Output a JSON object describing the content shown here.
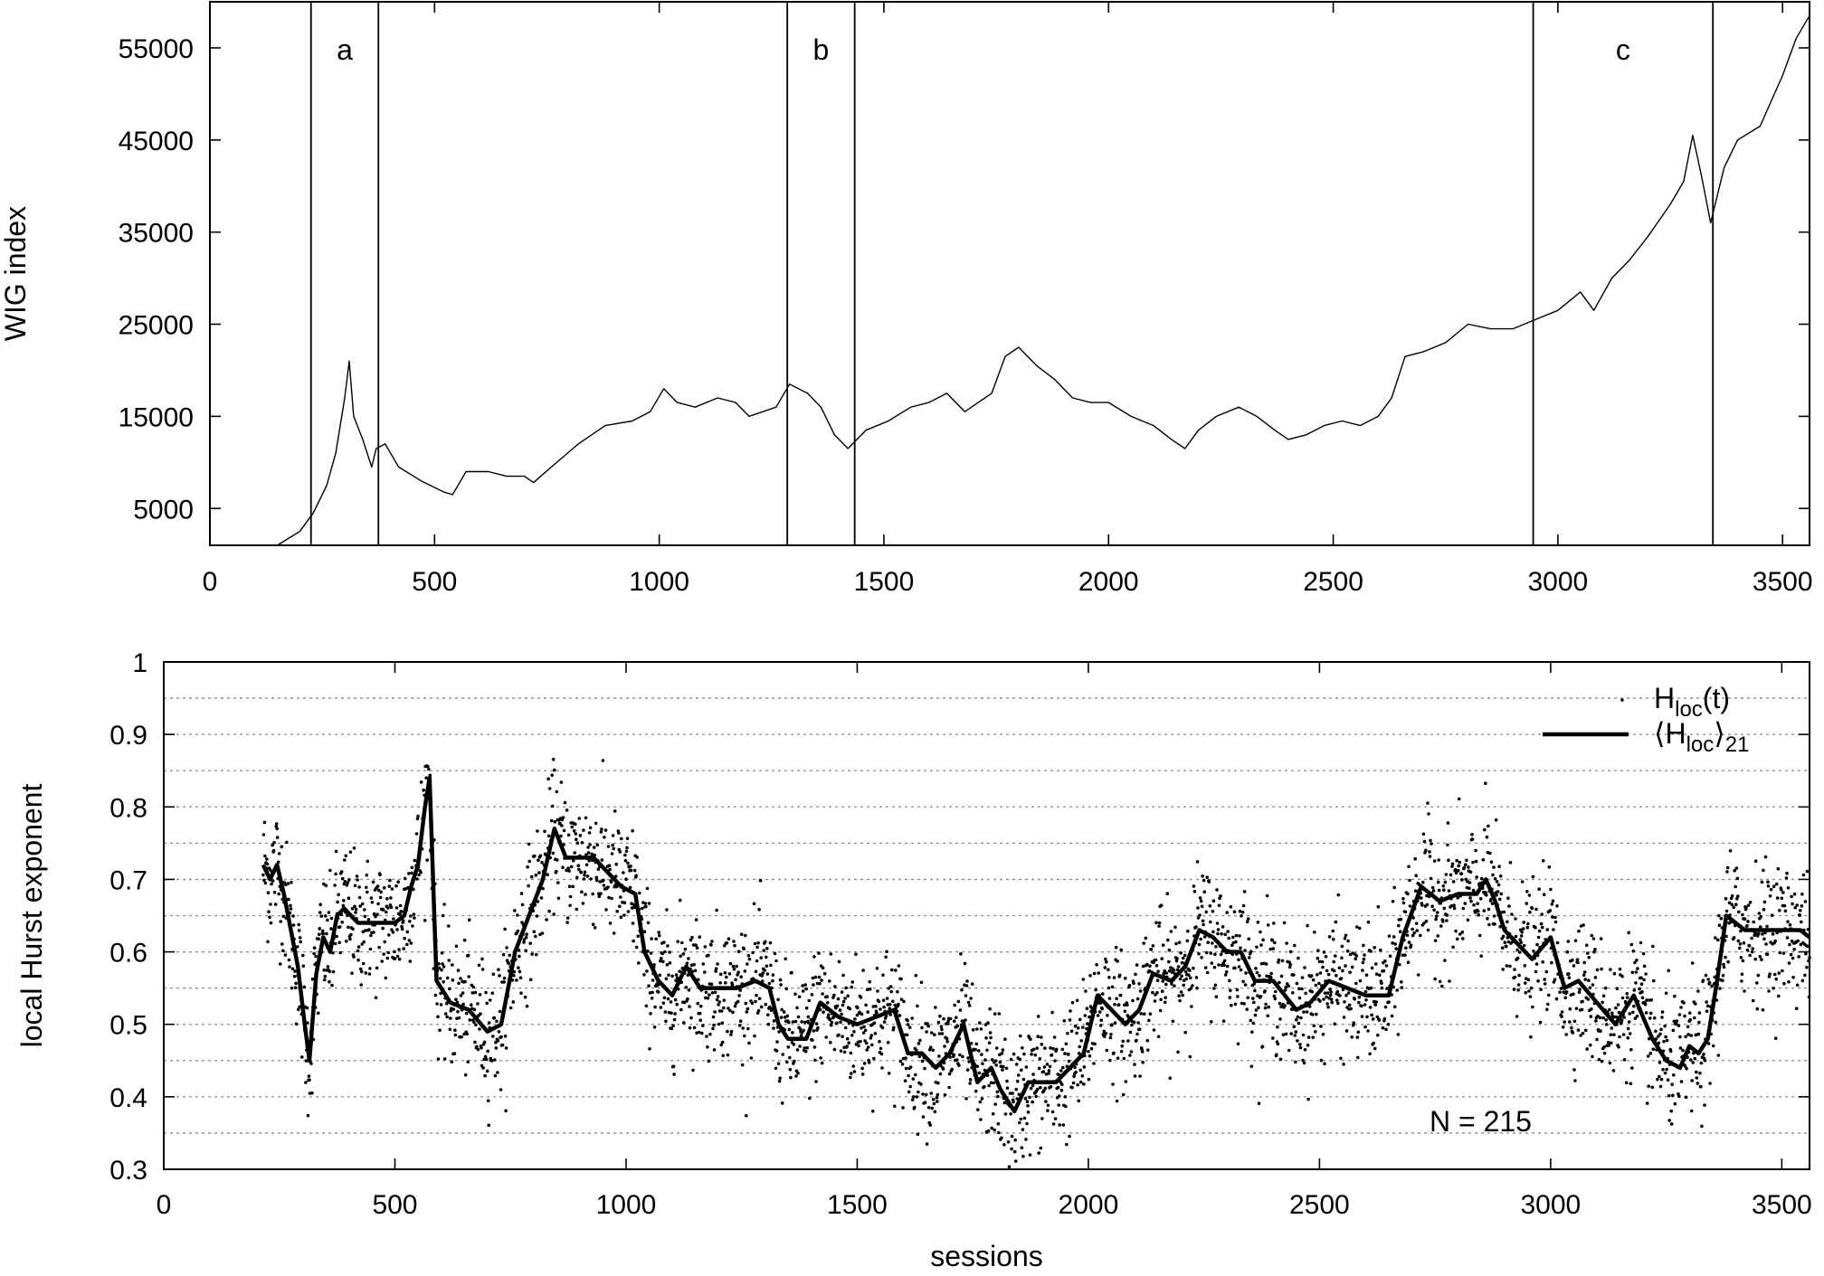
{
  "chart_data": [
    {
      "type": "line",
      "xlabel": "",
      "ylabel": "WIG index",
      "xlim": [
        0,
        3560
      ],
      "ylim": [
        1000,
        60000
      ],
      "xticks": [
        0,
        500,
        1000,
        1500,
        2000,
        2500,
        3000,
        3500
      ],
      "yticks": [
        5000,
        15000,
        25000,
        35000,
        45000,
        55000
      ],
      "regions": [
        {
          "label": "a",
          "x_start": 225,
          "x_end": 375
        },
        {
          "label": "b",
          "x_start": 1285,
          "x_end": 1435
        },
        {
          "label": "c",
          "x_start": 2945,
          "x_end": 3345
        }
      ],
      "series": [
        {
          "x": [
            0,
            150,
            200,
            230,
            260,
            280,
            300,
            310,
            320,
            340,
            360,
            370,
            390,
            420,
            470,
            520,
            540,
            570,
            620,
            660,
            700,
            720,
            760,
            820,
            880,
            940,
            980,
            1010,
            1040,
            1080,
            1130,
            1170,
            1200,
            1230,
            1260,
            1290,
            1330,
            1360,
            1390,
            1420,
            1460,
            1510,
            1560,
            1600,
            1640,
            1680,
            1710,
            1740,
            1770,
            1800,
            1840,
            1880,
            1920,
            1960,
            2000,
            2050,
            2100,
            2140,
            2170,
            2200,
            2240,
            2290,
            2330,
            2370,
            2400,
            2440,
            2480,
            2520,
            2560,
            2600,
            2630,
            2660,
            2700,
            2750,
            2800,
            2850,
            2900,
            2950,
            3000,
            3050,
            3080,
            3120,
            3160,
            3200,
            3250,
            3280,
            3300,
            3320,
            3340,
            3370,
            3400,
            3450,
            3500,
            3530,
            3560
          ],
          "values": [
            1000,
            1000,
            2500,
            4500,
            7500,
            11000,
            17000,
            21000,
            15000,
            12500,
            9500,
            11500,
            12000,
            9500,
            8000,
            6800,
            6500,
            9000,
            9000,
            8500,
            8500,
            7800,
            9500,
            12000,
            14000,
            14500,
            15500,
            18000,
            16500,
            16000,
            17000,
            16500,
            15000,
            15500,
            16000,
            18500,
            17500,
            16000,
            13000,
            11500,
            13500,
            14500,
            16000,
            16500,
            17500,
            15500,
            16500,
            17500,
            21500,
            22500,
            20500,
            19000,
            17000,
            16500,
            16500,
            15000,
            14000,
            12500,
            11500,
            13500,
            15000,
            16000,
            15000,
            13500,
            12500,
            13000,
            14000,
            14500,
            14000,
            15000,
            17000,
            21500,
            22000,
            23000,
            25000,
            24500,
            24500,
            25500,
            26500,
            28500,
            26500,
            30000,
            32000,
            34500,
            38000,
            40500,
            45500,
            41000,
            36000,
            42000,
            45000,
            46500,
            52000,
            56000,
            58500
          ]
        }
      ]
    },
    {
      "type": "scatter",
      "xlabel": "sessions",
      "ylabel": "local Hurst exponent",
      "xlim": [
        0,
        3560
      ],
      "ylim": [
        0.3,
        1.0
      ],
      "xticks": [
        0,
        500,
        1000,
        1500,
        2000,
        2500,
        3000,
        3500
      ],
      "yticks": [
        0.3,
        0.4,
        0.5,
        0.6,
        0.7,
        0.8,
        0.9,
        1.0
      ],
      "grid": true,
      "legend": "top-right",
      "annotation": "N = 215",
      "series": [
        {
          "name": "H_loc(t)",
          "legend_main": "H",
          "legend_sub": "loc",
          "legend_tail": "(t)",
          "style": "points",
          "scatter_sigma": 0.045
        },
        {
          "name": "⟨H_loc⟩21",
          "legend_prefix": "⟨H",
          "legend_sub": "loc",
          "legend_mid": "⟩",
          "legend_sub2": "21",
          "style": "line",
          "x": [
            215,
            230,
            245,
            260,
            275,
            290,
            305,
            315,
            330,
            345,
            360,
            375,
            390,
            420,
            460,
            500,
            520,
            535,
            550,
            565,
            575,
            590,
            620,
            660,
            700,
            730,
            760,
            790,
            820,
            845,
            870,
            900,
            930,
            960,
            990,
            1020,
            1040,
            1070,
            1100,
            1130,
            1160,
            1200,
            1240,
            1280,
            1310,
            1330,
            1350,
            1390,
            1420,
            1460,
            1500,
            1540,
            1580,
            1610,
            1640,
            1670,
            1700,
            1730,
            1760,
            1790,
            1810,
            1840,
            1870,
            1900,
            1930,
            1960,
            1990,
            2020,
            2050,
            2080,
            2110,
            2140,
            2180,
            2210,
            2240,
            2270,
            2300,
            2330,
            2360,
            2400,
            2450,
            2480,
            2520,
            2560,
            2600,
            2640,
            2650,
            2680,
            2720,
            2760,
            2800,
            2840,
            2860,
            2880,
            2900,
            2930,
            2960,
            3000,
            3030,
            3060,
            3100,
            3140,
            3180,
            3220,
            3250,
            3280,
            3300,
            3320,
            3340,
            3360,
            3380,
            3420,
            3460,
            3500,
            3540,
            3560
          ],
          "values": [
            0.72,
            0.7,
            0.72,
            0.68,
            0.63,
            0.58,
            0.5,
            0.45,
            0.57,
            0.62,
            0.6,
            0.65,
            0.66,
            0.64,
            0.64,
            0.64,
            0.65,
            0.69,
            0.72,
            0.8,
            0.84,
            0.56,
            0.53,
            0.52,
            0.49,
            0.5,
            0.6,
            0.65,
            0.7,
            0.77,
            0.73,
            0.73,
            0.73,
            0.71,
            0.69,
            0.68,
            0.6,
            0.56,
            0.54,
            0.58,
            0.55,
            0.55,
            0.55,
            0.56,
            0.55,
            0.5,
            0.48,
            0.48,
            0.53,
            0.51,
            0.5,
            0.51,
            0.52,
            0.46,
            0.46,
            0.44,
            0.46,
            0.5,
            0.42,
            0.44,
            0.41,
            0.38,
            0.42,
            0.42,
            0.42,
            0.44,
            0.46,
            0.54,
            0.52,
            0.5,
            0.52,
            0.57,
            0.56,
            0.58,
            0.63,
            0.62,
            0.6,
            0.6,
            0.56,
            0.56,
            0.52,
            0.53,
            0.56,
            0.55,
            0.54,
            0.54,
            0.54,
            0.62,
            0.69,
            0.67,
            0.68,
            0.68,
            0.7,
            0.67,
            0.63,
            0.61,
            0.59,
            0.62,
            0.55,
            0.56,
            0.53,
            0.5,
            0.54,
            0.48,
            0.45,
            0.44,
            0.47,
            0.46,
            0.48,
            0.56,
            0.65,
            0.63,
            0.63,
            0.63,
            0.63,
            0.62
          ]
        }
      ]
    }
  ]
}
